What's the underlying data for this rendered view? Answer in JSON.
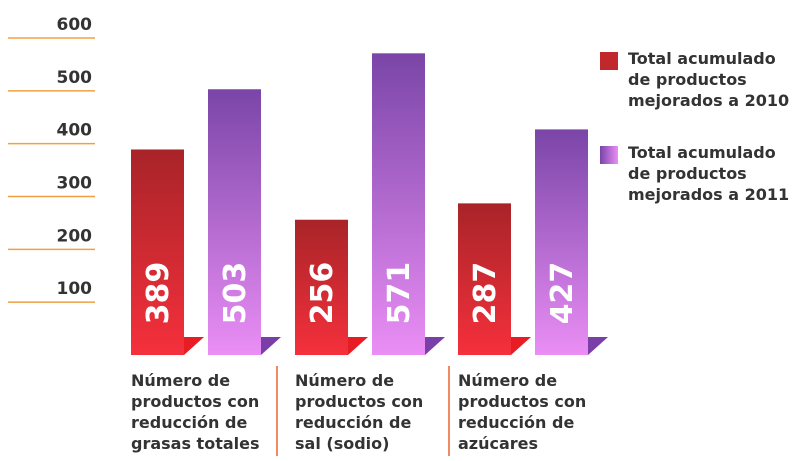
{
  "chart_data": {
    "type": "bar",
    "categories": [
      "Número de productos con reducción de grasas totales",
      "Número de productos con reducción de sal (sodio)",
      "Número de productos con reducción de azúcares"
    ],
    "series": [
      {
        "name": "Total acumulado de productos mejorados a 2010",
        "color": "#c0282c",
        "values": [
          389,
          256,
          287
        ]
      },
      {
        "name": "Total acumulado de productos mejorados a 2011",
        "color": "#9a55c0",
        "values": [
          503,
          571,
          427
        ]
      }
    ],
    "ylim": [
      0,
      600
    ],
    "yticks": [
      100,
      200,
      300,
      400,
      500,
      600
    ],
    "grid": true,
    "legend": "right"
  }
}
